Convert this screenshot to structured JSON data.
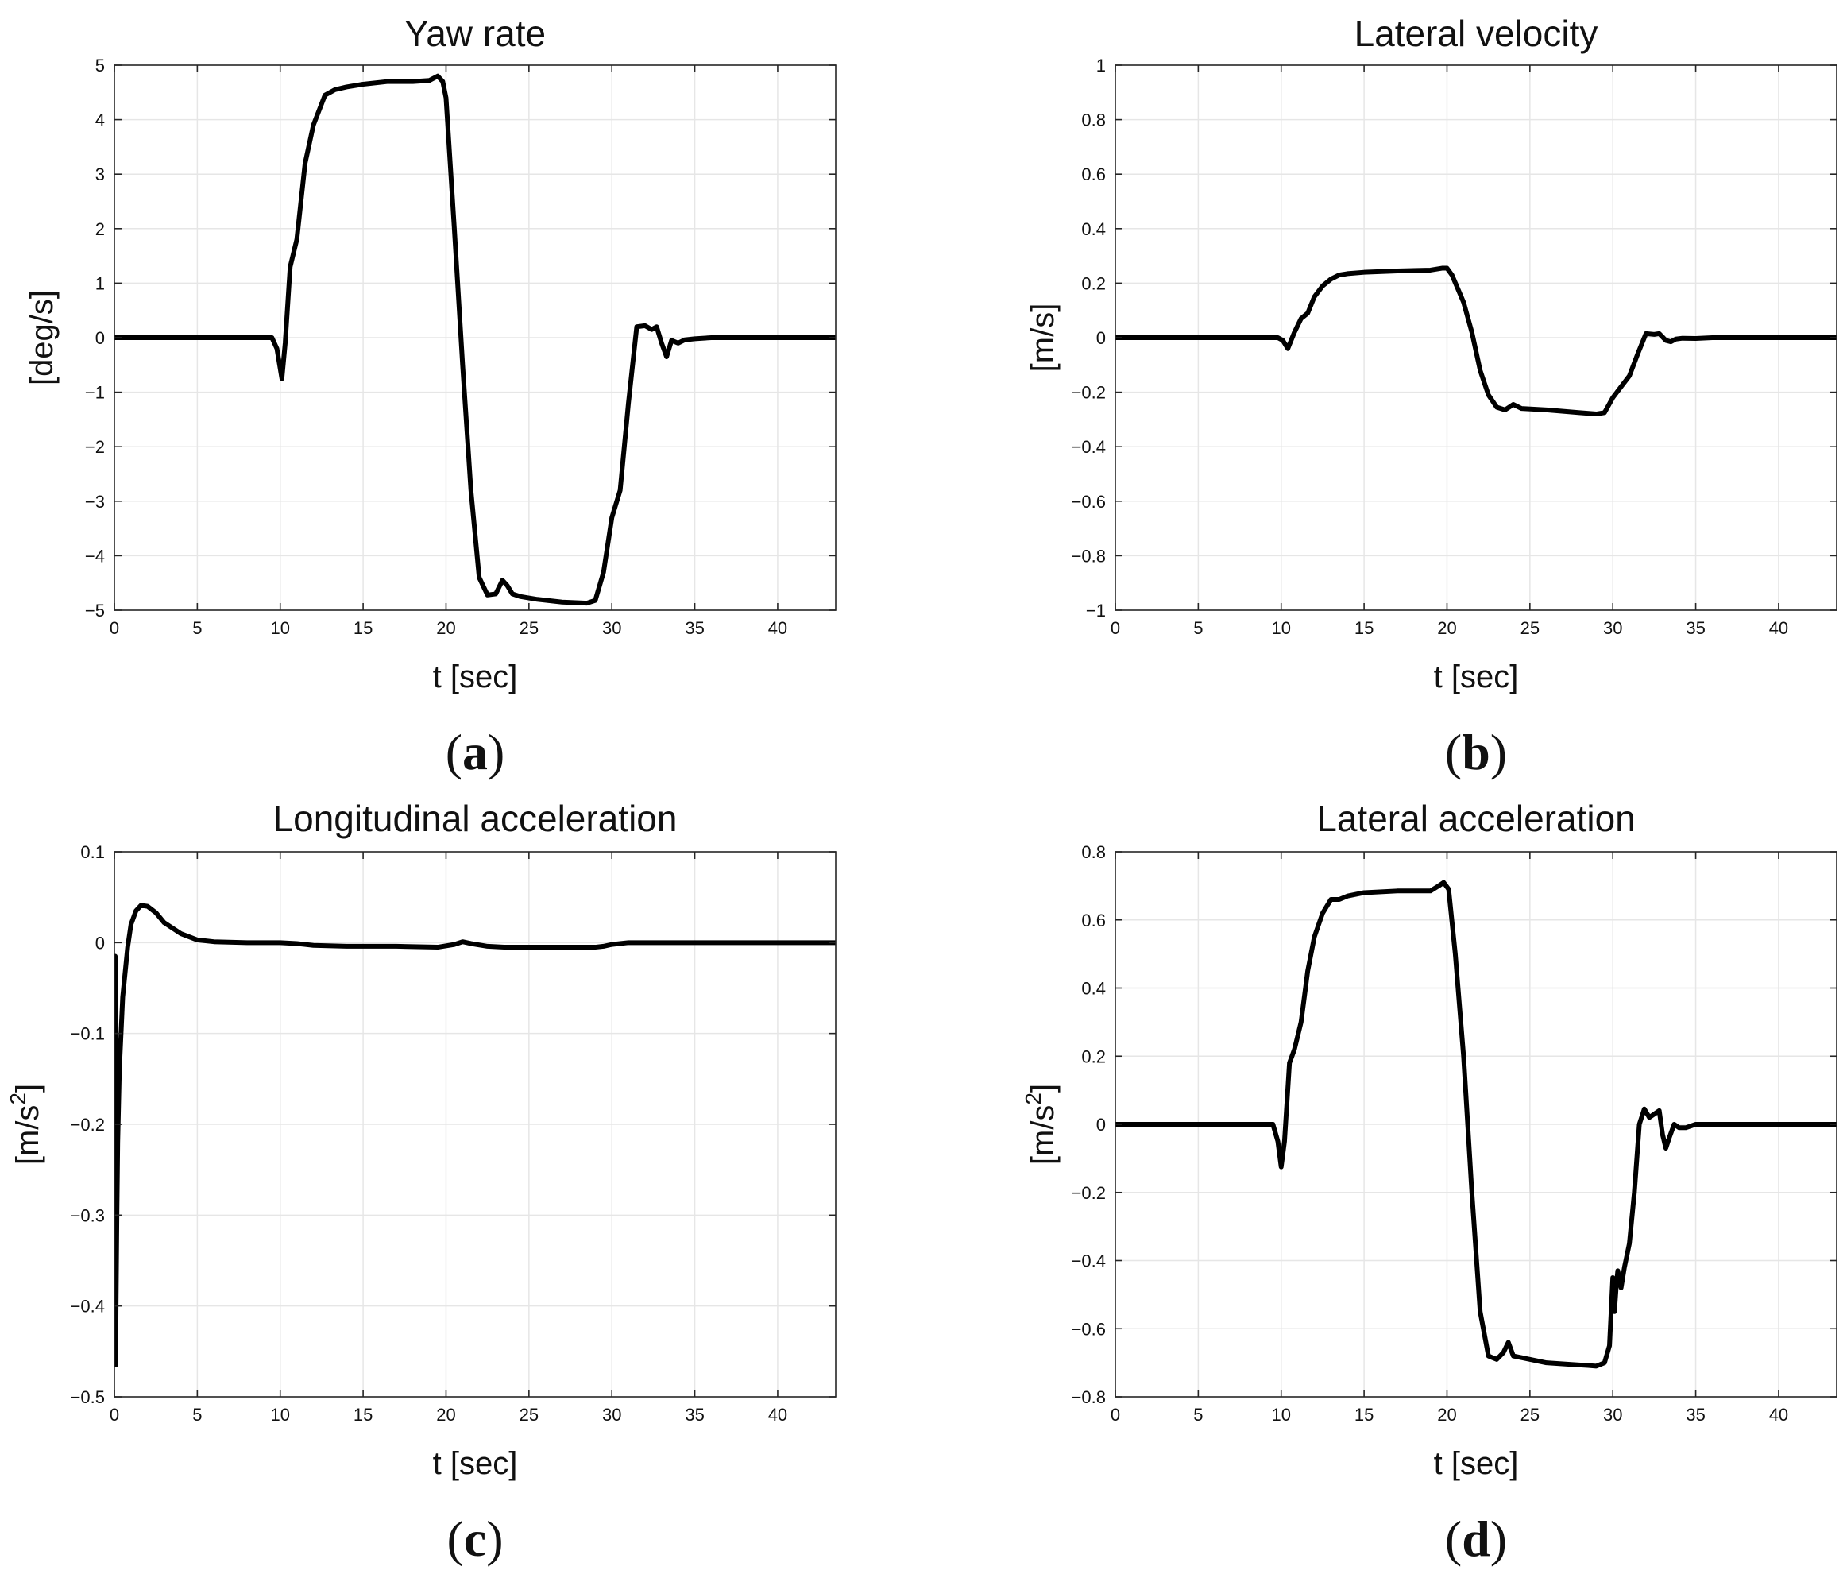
{
  "chart_data": [
    {
      "id": "a",
      "type": "line",
      "title": "Yaw rate",
      "xlabel": "t [sec]",
      "ylabel": "[deg/s]",
      "panel_label": "a",
      "xlim": [
        0,
        43.5
      ],
      "ylim": [
        -5,
        5
      ],
      "xticks": [
        0,
        5,
        10,
        15,
        20,
        25,
        30,
        35,
        40
      ],
      "yticks": [
        -5,
        -4,
        -3,
        -2,
        -1,
        0,
        1,
        2,
        3,
        4,
        5
      ],
      "xtick_labels": [
        "0",
        "5",
        "10",
        "15",
        "20",
        "25",
        "30",
        "35",
        "40"
      ],
      "ytick_labels": [
        "−5",
        "−4",
        "−3",
        "−2",
        "−1",
        "0",
        "1",
        "2",
        "3",
        "4",
        "5"
      ],
      "grid": true,
      "series": [
        {
          "name": "yaw rate",
          "x": [
            0,
            9.5,
            9.8,
            10.1,
            10.3,
            10.6,
            11.0,
            11.5,
            12.0,
            12.7,
            13.3,
            14.0,
            15.0,
            16.5,
            18.0,
            19.0,
            19.5,
            19.8,
            20.0,
            20.5,
            21.0,
            21.5,
            22.0,
            22.5,
            23.0,
            23.4,
            23.7,
            24.0,
            24.5,
            25.5,
            27.0,
            28.5,
            29.0,
            29.5,
            30.0,
            30.5,
            31.0,
            31.5,
            32.0,
            32.4,
            32.7,
            33.0,
            33.3,
            33.6,
            34.0,
            34.4,
            35.0,
            36.0,
            43.5
          ],
          "y": [
            0,
            0,
            -0.2,
            -0.75,
            -0.1,
            1.3,
            1.8,
            3.2,
            3.9,
            4.45,
            4.55,
            4.6,
            4.65,
            4.7,
            4.7,
            4.72,
            4.8,
            4.7,
            4.4,
            2.0,
            -0.5,
            -2.8,
            -4.4,
            -4.72,
            -4.7,
            -4.45,
            -4.55,
            -4.7,
            -4.75,
            -4.8,
            -4.85,
            -4.87,
            -4.82,
            -4.3,
            -3.3,
            -2.8,
            -1.2,
            0.2,
            0.22,
            0.15,
            0.2,
            -0.1,
            -0.35,
            -0.05,
            -0.1,
            -0.04,
            -0.02,
            0,
            0
          ]
        }
      ]
    },
    {
      "id": "b",
      "type": "line",
      "title": "Lateral velocity",
      "xlabel": "t [sec]",
      "ylabel": "[m/s]",
      "panel_label": "b",
      "xlim": [
        0,
        43.5
      ],
      "ylim": [
        -1,
        1
      ],
      "xticks": [
        0,
        5,
        10,
        15,
        20,
        25,
        30,
        35,
        40
      ],
      "yticks": [
        -1,
        -0.8,
        -0.6,
        -0.4,
        -0.2,
        0,
        0.2,
        0.4,
        0.6,
        0.8,
        1
      ],
      "xtick_labels": [
        "0",
        "5",
        "10",
        "15",
        "20",
        "25",
        "30",
        "35",
        "40"
      ],
      "ytick_labels": [
        "−1",
        "−0.8",
        "−0.6",
        "−0.4",
        "−0.2",
        "0",
        "0.2",
        "0.4",
        "0.6",
        "0.8",
        "1"
      ],
      "grid": true,
      "series": [
        {
          "name": "lateral velocity",
          "x": [
            0,
            9.8,
            10.1,
            10.4,
            10.8,
            11.2,
            11.6,
            12.0,
            12.5,
            13.0,
            13.5,
            14.0,
            15.0,
            17.0,
            19.0,
            19.7,
            20.0,
            20.3,
            21.0,
            21.5,
            22.0,
            22.5,
            23.0,
            23.5,
            24.0,
            24.5,
            26.0,
            28.0,
            29.0,
            29.5,
            30.0,
            30.5,
            31.0,
            31.5,
            32.0,
            32.5,
            32.8,
            33.2,
            33.5,
            33.8,
            34.2,
            35.0,
            36.0,
            43.5
          ],
          "y": [
            0,
            0,
            -0.01,
            -0.04,
            0.02,
            0.07,
            0.09,
            0.15,
            0.19,
            0.215,
            0.23,
            0.235,
            0.24,
            0.245,
            0.248,
            0.255,
            0.255,
            0.23,
            0.13,
            0.02,
            -0.12,
            -0.21,
            -0.255,
            -0.265,
            -0.245,
            -0.26,
            -0.265,
            -0.275,
            -0.28,
            -0.275,
            -0.22,
            -0.18,
            -0.14,
            -0.06,
            0.015,
            0.012,
            0.015,
            -0.01,
            -0.015,
            -0.005,
            -0.002,
            -0.003,
            0,
            0
          ]
        }
      ]
    },
    {
      "id": "c",
      "type": "line",
      "title": "Longitudinal acceleration",
      "xlabel": "t [sec]",
      "ylabel": "[m/s2]",
      "ylabel_base": "[m/s",
      "ylabel_sup": "2",
      "ylabel_end": "]",
      "panel_label": "c",
      "xlim": [
        0,
        43.5
      ],
      "ylim": [
        -0.5,
        0.1
      ],
      "xticks": [
        0,
        5,
        10,
        15,
        20,
        25,
        30,
        35,
        40
      ],
      "yticks": [
        -0.5,
        -0.4,
        -0.3,
        -0.2,
        -0.1,
        0,
        0.1
      ],
      "xtick_labels": [
        "0",
        "5",
        "10",
        "15",
        "20",
        "25",
        "30",
        "35",
        "40"
      ],
      "ytick_labels": [
        "−0.5",
        "−0.4",
        "−0.3",
        "−0.2",
        "−0.1",
        "0",
        "0.1"
      ],
      "grid": true,
      "series": [
        {
          "name": "longitudinal acceleration",
          "x": [
            0.05,
            0.08,
            0.1,
            0.15,
            0.2,
            0.3,
            0.5,
            0.8,
            1.0,
            1.3,
            1.6,
            2.0,
            2.5,
            3.0,
            4.0,
            5.0,
            6.0,
            8.0,
            10.0,
            11.0,
            12.0,
            14.0,
            17.0,
            19.5,
            20.5,
            21.0,
            21.5,
            22.5,
            23.5,
            25.0,
            27.0,
            29.0,
            29.5,
            30.0,
            31.0,
            35.0,
            43.5
          ],
          "y": [
            -0.015,
            -0.465,
            -0.4,
            -0.3,
            -0.22,
            -0.14,
            -0.06,
            -0.005,
            0.02,
            0.035,
            0.041,
            0.04,
            0.033,
            0.022,
            0.01,
            0.003,
            0.001,
            0,
            0,
            -0.001,
            -0.003,
            -0.004,
            -0.004,
            -0.005,
            -0.002,
            0.001,
            -0.001,
            -0.004,
            -0.005,
            -0.005,
            -0.005,
            -0.005,
            -0.004,
            -0.002,
            0,
            0,
            0
          ]
        }
      ]
    },
    {
      "id": "d",
      "type": "line",
      "title": "Lateral acceleration",
      "xlabel": "t [sec]",
      "ylabel": "[m/s2]",
      "ylabel_base": "[m/s",
      "ylabel_sup": "2",
      "ylabel_end": "]",
      "panel_label": "d",
      "xlim": [
        0,
        43.5
      ],
      "ylim": [
        -0.8,
        0.8
      ],
      "xticks": [
        0,
        5,
        10,
        15,
        20,
        25,
        30,
        35,
        40
      ],
      "yticks": [
        -0.8,
        -0.6,
        -0.4,
        -0.2,
        0,
        0.2,
        0.4,
        0.6,
        0.8
      ],
      "xtick_labels": [
        "0",
        "5",
        "10",
        "15",
        "20",
        "25",
        "30",
        "35",
        "40"
      ],
      "ytick_labels": [
        "−0.8",
        "−0.6",
        "−0.4",
        "−0.2",
        "0",
        "0.2",
        "0.4",
        "0.6",
        "0.8"
      ],
      "grid": true,
      "series": [
        {
          "name": "lateral acceleration",
          "x": [
            0,
            9.5,
            9.8,
            10.0,
            10.2,
            10.5,
            10.8,
            11.2,
            11.6,
            12.0,
            12.5,
            13.0,
            13.5,
            14.0,
            15.0,
            17.0,
            19.0,
            19.5,
            19.8,
            20.1,
            20.5,
            21.0,
            21.5,
            22.0,
            22.5,
            23.0,
            23.4,
            23.7,
            24.0,
            24.5,
            26.0,
            27.5,
            28.5,
            29.0,
            29.5,
            29.8,
            30.0,
            30.1,
            30.2,
            30.3,
            30.5,
            30.7,
            31.0,
            31.3,
            31.6,
            31.9,
            32.2,
            32.5,
            32.8,
            33.0,
            33.2,
            33.4,
            33.7,
            34.0,
            34.4,
            35.0,
            36.0,
            43.5
          ],
          "y": [
            0,
            0,
            -0.05,
            -0.125,
            -0.05,
            0.18,
            0.22,
            0.3,
            0.45,
            0.55,
            0.62,
            0.66,
            0.66,
            0.67,
            0.68,
            0.685,
            0.685,
            0.7,
            0.71,
            0.69,
            0.5,
            0.2,
            -0.2,
            -0.55,
            -0.68,
            -0.69,
            -0.67,
            -0.64,
            -0.68,
            -0.685,
            -0.7,
            -0.705,
            -0.708,
            -0.71,
            -0.7,
            -0.65,
            -0.45,
            -0.55,
            -0.48,
            -0.43,
            -0.48,
            -0.42,
            -0.35,
            -0.2,
            0.0,
            0.045,
            0.02,
            0.03,
            0.04,
            -0.03,
            -0.07,
            -0.04,
            0.0,
            -0.01,
            -0.01,
            0.0,
            0,
            0
          ]
        }
      ]
    }
  ]
}
